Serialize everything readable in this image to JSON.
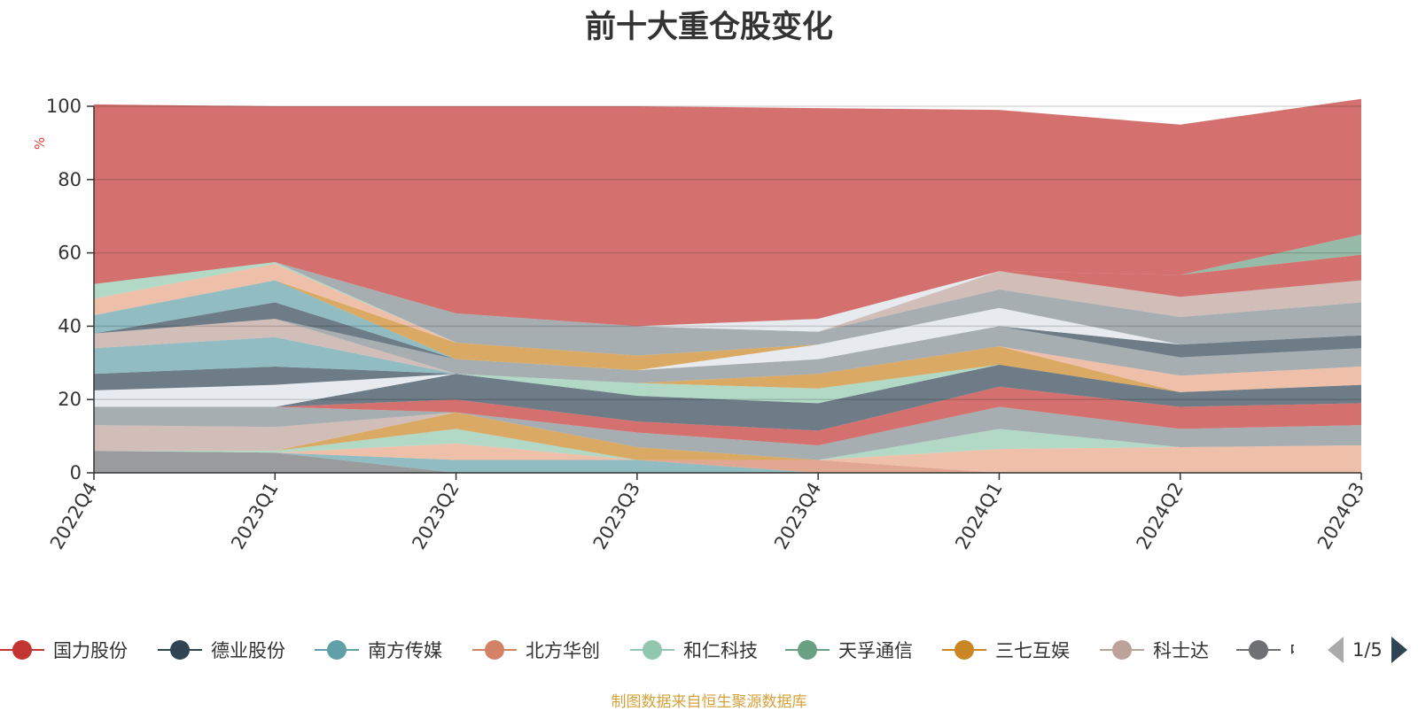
{
  "chart_data": {
    "type": "area",
    "stacked": true,
    "title": "前十大重仓股变化",
    "ylabel": "%",
    "ylim": [
      0,
      100
    ],
    "yticks": [
      0,
      20,
      40,
      60,
      80,
      100
    ],
    "grid": true,
    "legend_position": "bottom",
    "categories": [
      "2022Q4",
      "2023Q1",
      "2023Q2",
      "2023Q3",
      "2023Q4",
      "2024Q1",
      "2024Q2",
      "2024Q3"
    ],
    "bands": [
      {
        "color": "#6e7074",
        "values": [
          6,
          5.5,
          0,
          0,
          0,
          0,
          0,
          0
        ]
      },
      {
        "color": "#61a0a8",
        "values": [
          0,
          0,
          3.5,
          3.5,
          0,
          0,
          0,
          0
        ]
      },
      {
        "color": "#d48265",
        "values": [
          0,
          0,
          0,
          0,
          3.5,
          0,
          0,
          0
        ]
      },
      {
        "color": "#e8a585",
        "values": [
          0,
          0,
          4.5,
          0,
          0,
          6.5,
          7,
          7.5
        ]
      },
      {
        "color": "#91c7ae",
        "values": [
          0,
          0.5,
          4,
          0,
          0,
          5.5,
          0,
          0
        ]
      },
      {
        "color": "#ca8622",
        "values": [
          0,
          0,
          4.5,
          3.5,
          0,
          0,
          0,
          0
        ]
      },
      {
        "color": "#bda29a",
        "values": [
          7,
          6.5,
          0,
          0,
          0,
          0,
          0,
          0
        ]
      },
      {
        "color": "#828b92",
        "values": [
          5,
          5.5,
          0,
          4,
          4,
          6,
          5,
          5.5
        ]
      },
      {
        "color": "#c23531",
        "values": [
          0,
          0,
          3.5,
          3,
          4,
          5.5,
          6,
          6
        ]
      },
      {
        "color": "#2f4554",
        "values": [
          0,
          0,
          7,
          7,
          7.5,
          6,
          4,
          5
        ]
      },
      {
        "color": "#dde2e8",
        "values": [
          4.5,
          6,
          0,
          0,
          0,
          0,
          0,
          0
        ]
      },
      {
        "color": "#2f4554",
        "values": [
          4.5,
          5,
          0,
          0,
          0,
          0,
          0,
          0
        ]
      },
      {
        "color": "#61a0a8",
        "values": [
          7,
          8,
          0,
          0,
          0,
          0,
          0,
          0
        ]
      },
      {
        "color": "#91c7ae",
        "values": [
          0,
          0,
          0,
          3.5,
          4,
          0,
          0,
          0
        ]
      },
      {
        "color": "#ca8622",
        "values": [
          0,
          0,
          0,
          0,
          4,
          5,
          0,
          0
        ]
      },
      {
        "color": "#e8a585",
        "values": [
          0,
          0,
          0,
          0,
          0,
          0,
          4.5,
          5
        ]
      },
      {
        "color": "#bda29a",
        "values": [
          4,
          5,
          0,
          0,
          0,
          0,
          0,
          0
        ]
      },
      {
        "color": "#828b92",
        "values": [
          0,
          0,
          4,
          3.5,
          4,
          5.5,
          5,
          5
        ]
      },
      {
        "color": "#2f4554",
        "values": [
          0,
          0,
          0,
          0,
          0,
          0,
          3.5,
          3.5
        ]
      },
      {
        "color": "#dde2e8",
        "values": [
          0,
          0,
          0,
          0,
          4,
          5,
          0,
          0
        ]
      },
      {
        "color": "#2f4554",
        "values": [
          0,
          4.5,
          0,
          0,
          0,
          0,
          0,
          0
        ]
      },
      {
        "color": "#61a0a8",
        "values": [
          5,
          6,
          0,
          0,
          0,
          0,
          0,
          0
        ]
      },
      {
        "color": "#ca8622",
        "values": [
          0,
          0,
          4.5,
          4,
          0,
          0,
          0,
          0
        ]
      },
      {
        "color": "#e8a585",
        "values": [
          4.5,
          4.5,
          0,
          0,
          0,
          0,
          0,
          0
        ]
      },
      {
        "color": "#91c7ae",
        "values": [
          4,
          0.5,
          0,
          0,
          0,
          0,
          0,
          0
        ]
      },
      {
        "color": "#828b92",
        "values": [
          0,
          0,
          8,
          8,
          3.5,
          5,
          7.5,
          9
        ]
      },
      {
        "color": "#bda29a",
        "values": [
          0,
          0,
          0,
          0,
          0,
          5,
          5.5,
          6
        ]
      },
      {
        "color": "#c23531",
        "values": [
          0,
          0,
          0,
          0,
          0,
          0,
          6,
          7
        ]
      },
      {
        "color": "#6aa084",
        "values": [
          0,
          0,
          0,
          0,
          0,
          0,
          0,
          5.5
        ]
      },
      {
        "color": "#dde2e8",
        "values": [
          0,
          0,
          0,
          0,
          3.5,
          0,
          0,
          0
        ]
      },
      {
        "color": "#c23531",
        "values": [
          49,
          42.5,
          56.5,
          60,
          57.5,
          44,
          41,
          37
        ]
      }
    ],
    "legend": [
      {
        "label": "国力股份",
        "color": "#c23531"
      },
      {
        "label": "德业股份",
        "color": "#2f4554"
      },
      {
        "label": "南方传媒",
        "color": "#61a0a8"
      },
      {
        "label": "北方华创",
        "color": "#d48265"
      },
      {
        "label": "和仁科技",
        "color": "#91c7ae"
      },
      {
        "label": "天孚通信",
        "color": "#6aa084"
      },
      {
        "label": "三七互娱",
        "color": "#ca8622"
      },
      {
        "label": "科士达",
        "color": "#bda29a"
      },
      {
        "label": "中衍",
        "color": "#6e7074"
      }
    ]
  },
  "legend_pager": {
    "text": "1/5"
  },
  "source_note": "制图数据来自恒生聚源数据库"
}
